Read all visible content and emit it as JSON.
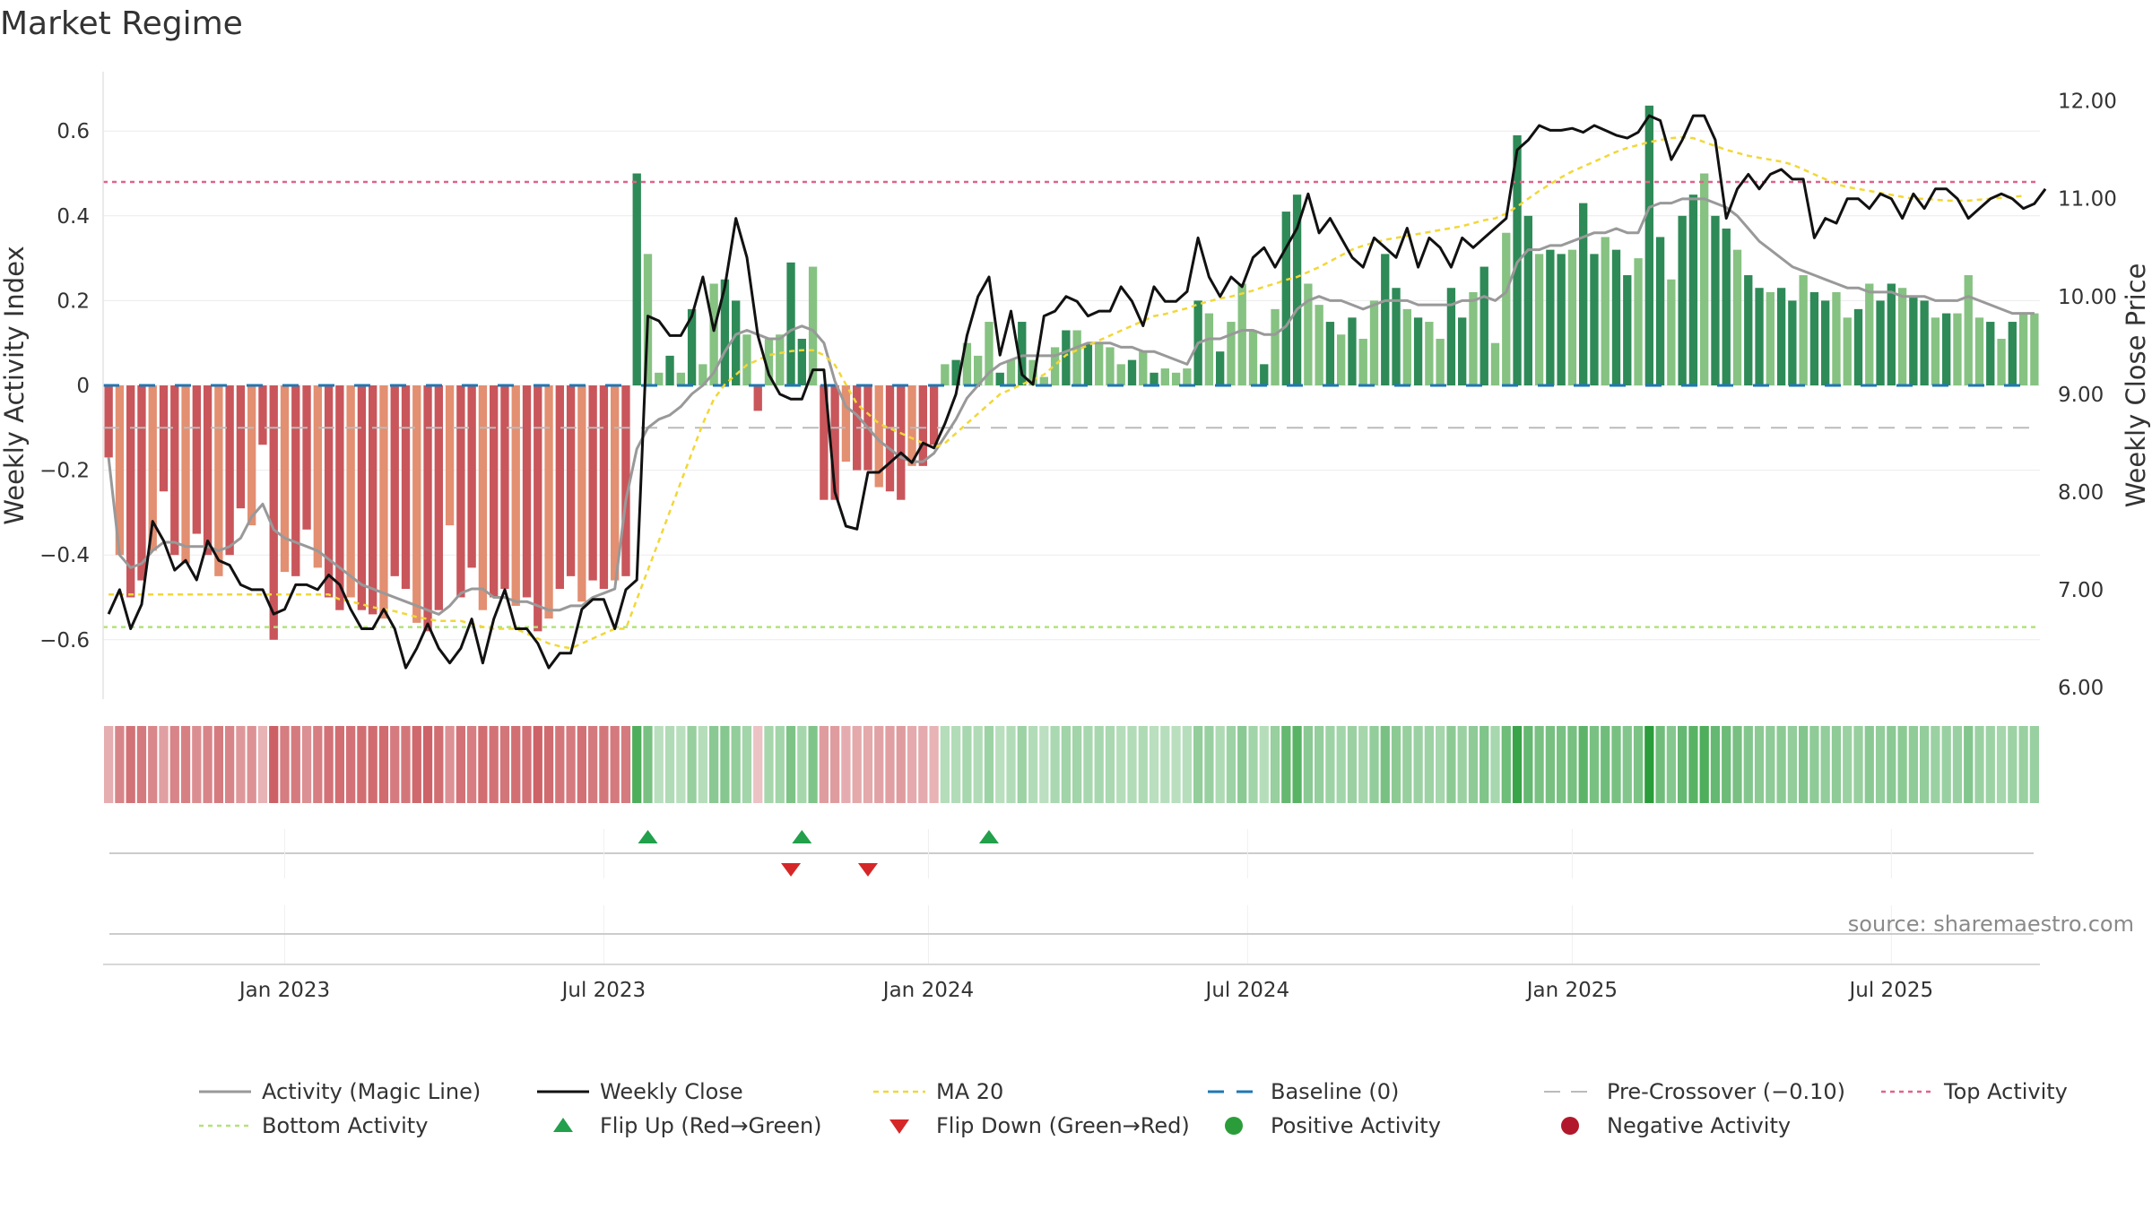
{
  "chart_data": {
    "type": "bar",
    "title": "Market Regime",
    "ylabel": "Weekly Activity Index",
    "y2label": "Weekly Close Price",
    "ylim": [
      -0.74,
      0.74
    ],
    "y2lim": [
      5.88,
      12.3
    ],
    "yticks": [
      {
        "v": 0.6,
        "label": "0.6"
      },
      {
        "v": 0.4,
        "label": "0.4"
      },
      {
        "v": 0.2,
        "label": "0.2"
      },
      {
        "v": 0,
        "label": "0"
      },
      {
        "v": -0.2,
        "label": "−0.2"
      },
      {
        "v": -0.4,
        "label": "−0.4"
      },
      {
        "v": -0.6,
        "label": "−0.6"
      }
    ],
    "y2ticks": [
      {
        "v": 12,
        "label": "12.00"
      },
      {
        "v": 11,
        "label": "11.00"
      },
      {
        "v": 10,
        "label": "10.00"
      },
      {
        "v": 9,
        "label": "9.00"
      },
      {
        "v": 8,
        "label": "8.00"
      },
      {
        "v": 7,
        "label": "7.00"
      },
      {
        "v": 6,
        "label": "6.00"
      }
    ],
    "xticks": [
      {
        "week": 16,
        "label": "Jan 2023"
      },
      {
        "week": 45,
        "label": "Jul 2023"
      },
      {
        "week": 74.5,
        "label": "Jan 2024"
      },
      {
        "week": 103.5,
        "label": "Jul 2024"
      },
      {
        "week": 133,
        "label": "Jan 2025"
      },
      {
        "week": 162,
        "label": "Jul 2025"
      }
    ],
    "weeks": 176,
    "activity": [
      -0.17,
      -0.4,
      -0.5,
      -0.46,
      -0.39,
      -0.25,
      -0.4,
      -0.42,
      -0.35,
      -0.4,
      -0.45,
      -0.4,
      -0.29,
      -0.33,
      -0.14,
      -0.6,
      -0.44,
      -0.45,
      -0.34,
      -0.43,
      -0.5,
      -0.53,
      -0.5,
      -0.53,
      -0.54,
      -0.55,
      -0.45,
      -0.48,
      -0.56,
      -0.58,
      -0.53,
      -0.33,
      -0.5,
      -0.43,
      -0.53,
      -0.5,
      -0.48,
      -0.52,
      -0.5,
      -0.58,
      -0.55,
      -0.48,
      -0.45,
      -0.51,
      -0.46,
      -0.48,
      -0.46,
      -0.45,
      0.5,
      0.31,
      0.03,
      0.07,
      0.03,
      0.18,
      0.05,
      0.24,
      0.25,
      0.2,
      0.12,
      -0.06,
      0.11,
      0.12,
      0.29,
      0.11,
      0.28,
      -0.27,
      -0.27,
      -0.18,
      -0.2,
      -0.2,
      -0.24,
      -0.25,
      -0.27,
      -0.19,
      -0.19,
      -0.14,
      0.05,
      0.06,
      0.1,
      0.07,
      0.15,
      0.03,
      0.06,
      0.15,
      0.06,
      0.02,
      0.09,
      0.13,
      0.13,
      0.1,
      0.1,
      0.09,
      0.05,
      0.06,
      0.08,
      0.03,
      0.04,
      0.03,
      0.04,
      0.2,
      0.17,
      0.08,
      0.15,
      0.24,
      0.13,
      0.05,
      0.18,
      0.41,
      0.45,
      0.24,
      0.19,
      0.15,
      0.12,
      0.16,
      0.11,
      0.2,
      0.31,
      0.23,
      0.18,
      0.16,
      0.15,
      0.11,
      0.23,
      0.16,
      0.22,
      0.28,
      0.1,
      0.36,
      0.59,
      0.4,
      0.31,
      0.32,
      0.31,
      0.32,
      0.43,
      0.31,
      0.35,
      0.32,
      0.26,
      0.3,
      0.66,
      0.35,
      0.25,
      0.4,
      0.45,
      0.5,
      0.4,
      0.37,
      0.32,
      0.26,
      0.23,
      0.22,
      0.23,
      0.2,
      0.26,
      0.22,
      0.2,
      0.22,
      0.16,
      0.18,
      0.24,
      0.2,
      0.24,
      0.23,
      0.21,
      0.2,
      0.16,
      0.17,
      0.17,
      0.26,
      0.16,
      0.15,
      0.11,
      0.15,
      0.17,
      0.17
    ],
    "magic_line": [
      -0.17,
      -0.4,
      -0.43,
      -0.42,
      -0.39,
      -0.37,
      -0.37,
      -0.38,
      -0.38,
      -0.38,
      -0.39,
      -0.38,
      -0.36,
      -0.31,
      -0.28,
      -0.34,
      -0.36,
      -0.37,
      -0.38,
      -0.39,
      -0.41,
      -0.43,
      -0.45,
      -0.47,
      -0.48,
      -0.49,
      -0.5,
      -0.51,
      -0.52,
      -0.53,
      -0.54,
      -0.52,
      -0.49,
      -0.48,
      -0.48,
      -0.5,
      -0.5,
      -0.51,
      -0.51,
      -0.52,
      -0.53,
      -0.53,
      -0.52,
      -0.52,
      -0.5,
      -0.49,
      -0.48,
      -0.27,
      -0.15,
      -0.1,
      -0.08,
      -0.07,
      -0.05,
      -0.02,
      0,
      0.03,
      0.08,
      0.12,
      0.13,
      0.12,
      0.11,
      0.11,
      0.13,
      0.14,
      0.13,
      0.1,
      0.01,
      -0.05,
      -0.07,
      -0.1,
      -0.13,
      -0.15,
      -0.17,
      -0.18,
      -0.18,
      -0.16,
      -0.12,
      -0.08,
      -0.03,
      0,
      0.03,
      0.05,
      0.06,
      0.07,
      0.07,
      0.07,
      0.07,
      0.08,
      0.09,
      0.1,
      0.1,
      0.1,
      0.09,
      0.09,
      0.08,
      0.08,
      0.07,
      0.06,
      0.05,
      0.1,
      0.11,
      0.11,
      0.12,
      0.13,
      0.13,
      0.12,
      0.12,
      0.14,
      0.18,
      0.2,
      0.21,
      0.2,
      0.2,
      0.19,
      0.18,
      0.19,
      0.2,
      0.2,
      0.2,
      0.19,
      0.19,
      0.19,
      0.19,
      0.2,
      0.2,
      0.21,
      0.2,
      0.22,
      0.29,
      0.32,
      0.32,
      0.33,
      0.33,
      0.34,
      0.35,
      0.36,
      0.36,
      0.37,
      0.36,
      0.36,
      0.42,
      0.43,
      0.43,
      0.44,
      0.44,
      0.44,
      0.43,
      0.42,
      0.4,
      0.37,
      0.34,
      0.32,
      0.3,
      0.28,
      0.27,
      0.26,
      0.25,
      0.24,
      0.23,
      0.23,
      0.22,
      0.22,
      0.22,
      0.21,
      0.21,
      0.21,
      0.2,
      0.2,
      0.2,
      0.21,
      0.2,
      0.19,
      0.18,
      0.17,
      0.17,
      0.17
    ],
    "close": [
      6.75,
      7.0,
      6.6,
      6.85,
      7.7,
      7.5,
      7.2,
      7.3,
      7.1,
      7.5,
      7.3,
      7.25,
      7.05,
      7.0,
      7.0,
      6.75,
      6.8,
      7.05,
      7.05,
      7.0,
      7.15,
      7.05,
      6.8,
      6.6,
      6.6,
      6.8,
      6.6,
      6.2,
      6.4,
      6.65,
      6.4,
      6.25,
      6.4,
      6.7,
      6.25,
      6.7,
      7.0,
      6.6,
      6.6,
      6.45,
      6.2,
      6.35,
      6.35,
      6.8,
      6.9,
      6.9,
      6.6,
      7.0,
      7.1,
      9.8,
      9.75,
      9.6,
      9.6,
      9.8,
      10.2,
      9.65,
      10.1,
      10.8,
      10.4,
      9.6,
      9.2,
      9.0,
      8.95,
      8.95,
      9.25,
      9.25,
      8.0,
      7.65,
      7.62,
      8.2,
      8.2,
      8.3,
      8.4,
      8.3,
      8.5,
      8.45,
      8.7,
      9.0,
      9.6,
      10.0,
      10.2,
      9.4,
      9.85,
      9.2,
      9.1,
      9.8,
      9.85,
      10.0,
      9.95,
      9.8,
      9.85,
      9.85,
      10.1,
      9.95,
      9.7,
      10.1,
      9.95,
      9.95,
      10.05,
      10.6,
      10.2,
      10.0,
      10.2,
      10.1,
      10.4,
      10.5,
      10.3,
      10.5,
      10.7,
      11.05,
      10.65,
      10.8,
      10.6,
      10.4,
      10.3,
      10.6,
      10.5,
      10.4,
      10.7,
      10.3,
      10.6,
      10.5,
      10.3,
      10.6,
      10.5,
      10.6,
      10.7,
      10.8,
      11.5,
      11.6,
      11.75,
      11.7,
      11.7,
      11.72,
      11.68,
      11.75,
      11.7,
      11.65,
      11.62,
      11.68,
      11.85,
      11.8,
      11.4,
      11.6,
      11.85,
      11.85,
      11.6,
      10.8,
      11.1,
      11.25,
      11.1,
      11.25,
      11.3,
      11.2,
      11.2,
      10.6,
      10.8,
      10.75,
      11.0,
      11.0,
      10.9,
      11.05,
      11.0,
      10.8,
      11.05,
      10.9,
      11.1,
      11.1,
      11.0,
      10.8,
      10.9,
      11.0,
      11.05,
      11.0,
      10.9,
      10.95,
      11.1
    ],
    "ma20": [
      6.95,
      6.95,
      6.95,
      6.95,
      6.95,
      6.95,
      6.95,
      6.95,
      6.95,
      6.95,
      6.95,
      6.95,
      6.95,
      6.95,
      6.95,
      6.95,
      6.95,
      6.95,
      6.95,
      6.95,
      6.95,
      6.9,
      6.88,
      6.85,
      6.82,
      6.8,
      6.78,
      6.75,
      6.72,
      6.7,
      6.68,
      6.68,
      6.68,
      6.65,
      6.62,
      6.6,
      6.6,
      6.6,
      6.55,
      6.5,
      6.45,
      6.42,
      6.4,
      6.45,
      6.5,
      6.55,
      6.6,
      6.6,
      6.9,
      7.2,
      7.5,
      7.8,
      8.1,
      8.4,
      8.7,
      8.95,
      9.1,
      9.2,
      9.3,
      9.35,
      9.4,
      9.42,
      9.44,
      9.45,
      9.45,
      9.4,
      9.3,
      9.1,
      8.9,
      8.8,
      8.7,
      8.65,
      8.6,
      8.55,
      8.5,
      8.45,
      8.5,
      8.6,
      8.7,
      8.8,
      8.9,
      9.0,
      9.05,
      9.1,
      9.15,
      9.2,
      9.3,
      9.4,
      9.45,
      9.5,
      9.55,
      9.6,
      9.65,
      9.7,
      9.75,
      9.8,
      9.82,
      9.85,
      9.88,
      9.92,
      9.95,
      9.98,
      10.0,
      10.03,
      10.06,
      10.1,
      10.13,
      10.17,
      10.2,
      10.25,
      10.3,
      10.36,
      10.42,
      10.48,
      10.52,
      10.55,
      10.58,
      10.6,
      10.62,
      10.64,
      10.66,
      10.68,
      10.7,
      10.72,
      10.75,
      10.78,
      10.8,
      10.85,
      10.92,
      11.0,
      11.08,
      11.15,
      11.22,
      11.28,
      11.33,
      11.38,
      11.43,
      11.48,
      11.52,
      11.55,
      11.58,
      11.6,
      11.62,
      11.63,
      11.62,
      11.58,
      11.54,
      11.5,
      11.47,
      11.44,
      11.42,
      11.4,
      11.38,
      11.35,
      11.3,
      11.25,
      11.2,
      11.15,
      11.12,
      11.1,
      11.08,
      11.06,
      11.04,
      11.02,
      11.0,
      11.0,
      10.99,
      10.98,
      10.98,
      10.98,
      10.99,
      11.0,
      11.01,
      11.02,
      11.03
    ],
    "baseline": 0,
    "pre_crossover": -0.1,
    "top_activity": 0.48,
    "bottom_activity": -0.57,
    "flip_up_weeks": [
      49,
      63,
      80
    ],
    "flip_down_weeks": [
      62,
      69
    ],
    "colors": {
      "neg_strong": "#c9565b",
      "neg_light": "#e38f71",
      "pos_strong": "#2e8a57",
      "pos_light": "#86c282",
      "magic_line": "#999999",
      "close": "#111111",
      "ma20": "#f2d736",
      "baseline": "#1f77b4",
      "pre_crossover": "#bbbbbb",
      "top": "#e0638a",
      "bottom": "#b3e27a",
      "flip_up": "#22a04b",
      "flip_down": "#d62728",
      "pos_dot": "#2a9d3a",
      "neg_dot": "#b2182b"
    },
    "legend": [
      {
        "key": "magic",
        "label": "Activity (Magic Line)"
      },
      {
        "key": "close",
        "label": "Weekly Close"
      },
      {
        "key": "ma20",
        "label": "MA 20"
      },
      {
        "key": "baseline",
        "label": "Baseline (0)"
      },
      {
        "key": "pre",
        "label": "Pre-Crossover (−0.10)"
      },
      {
        "key": "top",
        "label": "Top Activity"
      },
      {
        "key": "bottom",
        "label": "Bottom Activity"
      },
      {
        "key": "flipup",
        "label": "Flip Up (Red→Green)"
      },
      {
        "key": "flipdown",
        "label": "Flip Down (Green→Red)"
      },
      {
        "key": "posdot",
        "label": "Positive Activity"
      },
      {
        "key": "negdot",
        "label": "Negative Activity"
      }
    ],
    "source": "source: sharemaestro.com"
  }
}
